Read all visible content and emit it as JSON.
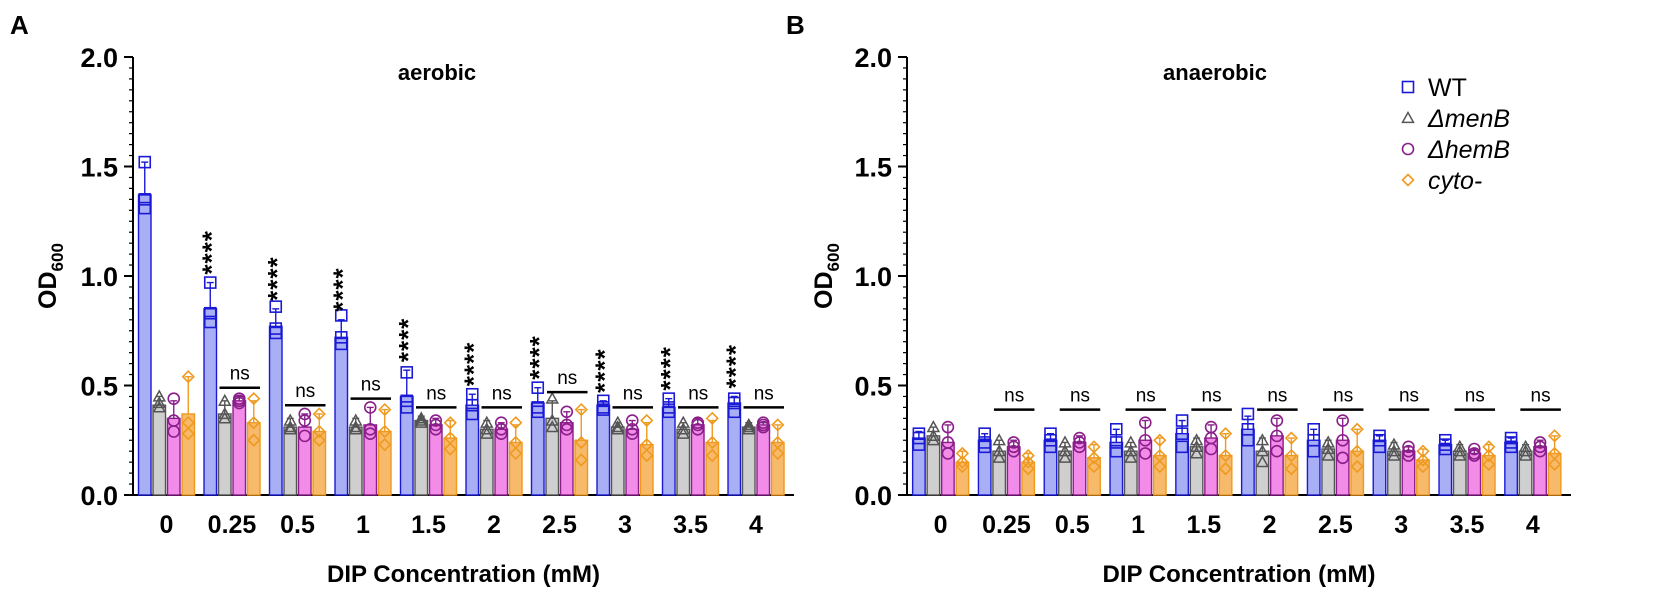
{
  "colors": {
    "WT": "#1a1ad6",
    "WT_fill": "#a9aff5",
    "menB": "#555555",
    "menB_fill": "#cfcfcf",
    "hemB": "#8a1f8a",
    "hemB_fill": "#f28ce8",
    "cyto": "#ef9a1f",
    "cyto_fill": "#f7b96a",
    "axis": "#000000"
  },
  "chart_data": [
    {
      "panel_label": "A",
      "type": "bar",
      "title": "aerobic",
      "xlabel": "DIP Concentration (mM)",
      "ylabel": "OD",
      "ylabel_sub": "600",
      "ylim": [
        0,
        2.0
      ],
      "yticks": [
        "0.0",
        "0.5",
        "1.0",
        "1.5",
        "2.0"
      ],
      "categories": [
        "0",
        "0.25",
        "0.5",
        "1",
        "1.5",
        "2",
        "2.5",
        "3",
        "3.5",
        "4"
      ],
      "series": [
        {
          "name": "WT",
          "values": [
            1.37,
            0.85,
            0.77,
            0.72,
            0.45,
            0.41,
            0.42,
            0.41,
            0.4,
            0.42
          ],
          "errors": [
            0.15,
            0.12,
            0.08,
            0.08,
            0.12,
            0.05,
            0.07,
            0.02,
            0.04,
            0.03
          ],
          "points": [
            [
              1.52,
              1.35,
              1.31
            ],
            [
              0.97,
              0.83,
              0.79
            ],
            [
              0.86,
              0.76,
              0.74
            ],
            [
              0.82,
              0.72,
              0.69
            ],
            [
              0.56,
              0.43,
              0.4
            ],
            [
              0.46,
              0.41,
              0.37
            ],
            [
              0.49,
              0.4,
              0.38
            ],
            [
              0.43,
              0.4,
              0.39
            ],
            [
              0.44,
              0.4,
              0.38
            ],
            [
              0.44,
              0.42,
              0.38
            ]
          ]
        },
        {
          "name": "ΔmenB",
          "values": [
            0.41,
            0.37,
            0.31,
            0.31,
            0.34,
            0.3,
            0.35,
            0.31,
            0.3,
            0.31
          ],
          "errors": [
            0.04,
            0.06,
            0.04,
            0.04,
            0.02,
            0.04,
            0.08,
            0.02,
            0.03,
            0.02
          ],
          "points": [
            [
              0.45,
              0.42,
              0.4
            ],
            [
              0.43,
              0.37,
              0.35
            ],
            [
              0.34,
              0.31,
              0.3
            ],
            [
              0.34,
              0.31,
              0.3
            ],
            [
              0.35,
              0.34,
              0.33
            ],
            [
              0.33,
              0.3,
              0.28
            ],
            [
              0.44,
              0.34,
              0.31
            ],
            [
              0.33,
              0.31,
              0.3
            ],
            [
              0.33,
              0.3,
              0.28
            ],
            [
              0.32,
              0.31,
              0.3
            ]
          ]
        },
        {
          "name": "ΔhemB",
          "values": [
            0.35,
            0.43,
            0.31,
            0.32,
            0.32,
            0.3,
            0.33,
            0.3,
            0.32,
            0.32
          ],
          "errors": [
            0.08,
            0.02,
            0.06,
            0.08,
            0.03,
            0.03,
            0.05,
            0.04,
            0.03,
            0.01
          ],
          "points": [
            [
              0.44,
              0.34,
              0.29
            ],
            [
              0.44,
              0.43,
              0.42
            ],
            [
              0.37,
              0.34,
              0.27
            ],
            [
              0.4,
              0.3,
              0.28
            ],
            [
              0.34,
              0.32,
              0.3
            ],
            [
              0.33,
              0.3,
              0.28
            ],
            [
              0.38,
              0.32,
              0.3
            ],
            [
              0.34,
              0.3,
              0.28
            ],
            [
              0.33,
              0.32,
              0.3
            ],
            [
              0.33,
              0.32,
              0.31
            ]
          ]
        },
        {
          "name": "cyto-",
          "values": [
            0.37,
            0.33,
            0.29,
            0.29,
            0.26,
            0.24,
            0.25,
            0.23,
            0.24,
            0.24
          ],
          "errors": [
            0.17,
            0.1,
            0.08,
            0.1,
            0.08,
            0.08,
            0.14,
            0.1,
            0.1,
            0.08
          ],
          "points": [
            [
              0.54,
              0.33,
              0.28
            ],
            [
              0.44,
              0.33,
              0.25
            ],
            [
              0.37,
              0.29,
              0.25
            ],
            [
              0.39,
              0.29,
              0.23
            ],
            [
              0.33,
              0.26,
              0.21
            ],
            [
              0.33,
              0.24,
              0.19
            ],
            [
              0.39,
              0.24,
              0.16
            ],
            [
              0.34,
              0.23,
              0.18
            ],
            [
              0.35,
              0.24,
              0.18
            ],
            [
              0.32,
              0.24,
              0.19
            ]
          ]
        }
      ],
      "annotations": {
        "stars": [
          "",
          "****",
          "****",
          "****",
          "****",
          "****",
          "****",
          "****",
          "****",
          "****"
        ],
        "ns": [
          "",
          "ns",
          "ns",
          "ns",
          "ns",
          "ns",
          "ns",
          "ns",
          "ns",
          "ns"
        ]
      },
      "legend": null
    },
    {
      "panel_label": "B",
      "type": "bar",
      "title": "anaerobic",
      "xlabel": "DIP Concentration (mM)",
      "ylabel": "OD",
      "ylabel_sub": "600",
      "ylim": [
        0,
        2.0
      ],
      "yticks": [
        "0.0",
        "0.5",
        "1.0",
        "1.5",
        "2.0"
      ],
      "categories": [
        "0",
        "0.25",
        "0.5",
        "1",
        "1.5",
        "2",
        "2.5",
        "3",
        "3.5",
        "4"
      ],
      "series": [
        {
          "name": "WT",
          "values": [
            0.26,
            0.25,
            0.25,
            0.24,
            0.28,
            0.3,
            0.25,
            0.25,
            0.23,
            0.24
          ],
          "errors": [
            0.03,
            0.03,
            0.03,
            0.06,
            0.06,
            0.06,
            0.05,
            0.02,
            0.02,
            0.02
          ],
          "points": [
            [
              0.28,
              0.26,
              0.23
            ],
            [
              0.28,
              0.24,
              0.22
            ],
            [
              0.28,
              0.25,
              0.22
            ],
            [
              0.3,
              0.24,
              0.2
            ],
            [
              0.34,
              0.28,
              0.22
            ],
            [
              0.37,
              0.3,
              0.25
            ],
            [
              0.3,
              0.25,
              0.2
            ],
            [
              0.27,
              0.25,
              0.22
            ],
            [
              0.25,
              0.23,
              0.21
            ],
            [
              0.26,
              0.24,
              0.22
            ]
          ]
        },
        {
          "name": "ΔmenB",
          "values": [
            0.27,
            0.2,
            0.2,
            0.2,
            0.22,
            0.2,
            0.21,
            0.2,
            0.2,
            0.2
          ],
          "errors": [
            0.04,
            0.05,
            0.04,
            0.04,
            0.04,
            0.06,
            0.04,
            0.04,
            0.03,
            0.03
          ],
          "points": [
            [
              0.31,
              0.27,
              0.25
            ],
            [
              0.25,
              0.2,
              0.17
            ],
            [
              0.24,
              0.2,
              0.17
            ],
            [
              0.24,
              0.2,
              0.17
            ],
            [
              0.25,
              0.22,
              0.19
            ],
            [
              0.25,
              0.2,
              0.15
            ],
            [
              0.24,
              0.21,
              0.18
            ],
            [
              0.23,
              0.2,
              0.18
            ],
            [
              0.22,
              0.2,
              0.18
            ],
            [
              0.22,
              0.2,
              0.18
            ]
          ]
        },
        {
          "name": "ΔhemB",
          "values": [
            0.24,
            0.22,
            0.24,
            0.25,
            0.26,
            0.27,
            0.25,
            0.2,
            0.19,
            0.22
          ],
          "errors": [
            0.08,
            0.03,
            0.03,
            0.09,
            0.06,
            0.08,
            0.1,
            0.02,
            0.02,
            0.03
          ],
          "points": [
            [
              0.31,
              0.24,
              0.19
            ],
            [
              0.24,
              0.22,
              0.2
            ],
            [
              0.26,
              0.24,
              0.22
            ],
            [
              0.33,
              0.25,
              0.19
            ],
            [
              0.31,
              0.26,
              0.21
            ],
            [
              0.34,
              0.27,
              0.2
            ],
            [
              0.34,
              0.25,
              0.17
            ],
            [
              0.22,
              0.2,
              0.18
            ],
            [
              0.21,
              0.19,
              0.18
            ],
            [
              0.24,
              0.22,
              0.2
            ]
          ]
        },
        {
          "name": "cyto-",
          "values": [
            0.15,
            0.15,
            0.17,
            0.18,
            0.18,
            0.18,
            0.2,
            0.16,
            0.18,
            0.19
          ],
          "errors": [
            0.05,
            0.04,
            0.06,
            0.08,
            0.1,
            0.08,
            0.1,
            0.05,
            0.05,
            0.08
          ],
          "points": [
            [
              0.19,
              0.15,
              0.13
            ],
            [
              0.18,
              0.15,
              0.12
            ],
            [
              0.22,
              0.17,
              0.13
            ],
            [
              0.25,
              0.18,
              0.13
            ],
            [
              0.28,
              0.18,
              0.12
            ],
            [
              0.26,
              0.18,
              0.12
            ],
            [
              0.3,
              0.2,
              0.13
            ],
            [
              0.2,
              0.16,
              0.13
            ],
            [
              0.22,
              0.18,
              0.14
            ],
            [
              0.27,
              0.19,
              0.14
            ]
          ]
        }
      ],
      "annotations": {
        "stars": [
          "",
          "",
          "",
          "",
          "",
          "",
          "",
          "",
          "",
          ""
        ],
        "ns": [
          "",
          "ns",
          "ns",
          "ns",
          "ns",
          "ns",
          "ns",
          "ns",
          "ns",
          "ns"
        ]
      },
      "legend": {
        "placement": "top-right",
        "entries": [
          "WT",
          "ΔmenB",
          "ΔhemB",
          "cyto-"
        ]
      }
    }
  ]
}
